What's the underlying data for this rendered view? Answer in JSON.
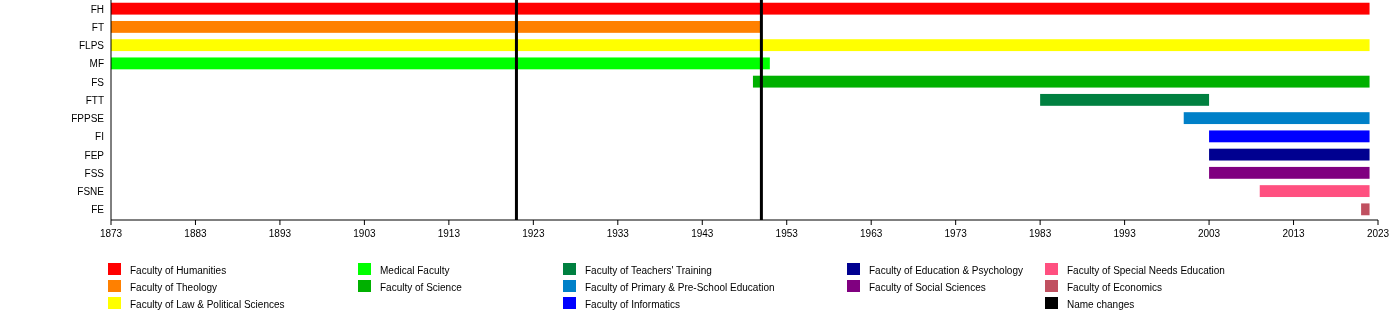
{
  "chart_data": {
    "type": "bar",
    "orientation": "horizontal",
    "categories": [
      "FH",
      "FT",
      "FLPS",
      "MF",
      "FS",
      "FTT",
      "FPPSE",
      "FI",
      "FEP",
      "FSS",
      "FSNE",
      "FE"
    ],
    "series": [
      {
        "name": "Faculty of Humanities",
        "color": "#ff0000",
        "base": [
          1873,
          null,
          null,
          null,
          null,
          null,
          null,
          null,
          null,
          null,
          null,
          null
        ],
        "values": [
          149,
          null,
          null,
          null,
          null,
          null,
          null,
          null,
          null,
          null,
          null,
          null
        ]
      },
      {
        "name": "Faculty of Theology",
        "color": "#ff8000",
        "base": [
          null,
          1873,
          null,
          null,
          null,
          null,
          null,
          null,
          null,
          null,
          null,
          null
        ],
        "values": [
          null,
          77,
          null,
          null,
          null,
          null,
          null,
          null,
          null,
          null,
          null,
          null
        ]
      },
      {
        "name": "Faculty of Law & Political Sciences",
        "color": "#ffff00",
        "base": [
          null,
          null,
          1873,
          null,
          null,
          null,
          null,
          null,
          null,
          null,
          null,
          null
        ],
        "values": [
          null,
          null,
          149,
          null,
          null,
          null,
          null,
          null,
          null,
          null,
          null,
          null
        ]
      },
      {
        "name": "Medical Faculty",
        "color": "#00ff00",
        "base": [
          null,
          null,
          null,
          1873,
          null,
          null,
          null,
          null,
          null,
          null,
          null,
          null
        ],
        "values": [
          null,
          null,
          null,
          78,
          null,
          null,
          null,
          null,
          null,
          null,
          null,
          null
        ]
      },
      {
        "name": "Faculty of Science",
        "color": "#00b000",
        "base": [
          null,
          null,
          null,
          null,
          1949,
          null,
          null,
          null,
          null,
          null,
          null,
          null
        ],
        "values": [
          null,
          null,
          null,
          null,
          73,
          null,
          null,
          null,
          null,
          null,
          null,
          null
        ]
      },
      {
        "name": "Faculty of Teachers' Training",
        "color": "#008040",
        "base": [
          null,
          null,
          null,
          null,
          null,
          1983,
          null,
          null,
          null,
          null,
          null,
          null
        ],
        "values": [
          null,
          null,
          null,
          null,
          null,
          20,
          null,
          null,
          null,
          null,
          null,
          null
        ]
      },
      {
        "name": "Faculty of Primary & Pre-School Education",
        "color": "#0080c8",
        "base": [
          null,
          null,
          null,
          null,
          null,
          null,
          2000,
          null,
          null,
          null,
          null,
          null
        ],
        "values": [
          null,
          null,
          null,
          null,
          null,
          null,
          22,
          null,
          null,
          null,
          null,
          null
        ]
      },
      {
        "name": "Faculty of Informatics",
        "color": "#0000ff",
        "base": [
          null,
          null,
          null,
          null,
          null,
          null,
          null,
          2003,
          null,
          null,
          null,
          null
        ],
        "values": [
          null,
          null,
          null,
          null,
          null,
          null,
          null,
          19,
          null,
          null,
          null,
          null
        ]
      },
      {
        "name": "Faculty of Education & Psychology",
        "color": "#000090",
        "base": [
          null,
          null,
          null,
          null,
          null,
          null,
          null,
          null,
          2003,
          null,
          null,
          null
        ],
        "values": [
          null,
          null,
          null,
          null,
          null,
          null,
          null,
          null,
          19,
          null,
          null,
          null
        ]
      },
      {
        "name": "Faculty of Social Sciences",
        "color": "#800080",
        "base": [
          null,
          null,
          null,
          null,
          null,
          null,
          null,
          null,
          null,
          2003,
          null,
          null
        ],
        "values": [
          null,
          null,
          null,
          null,
          null,
          null,
          null,
          null,
          null,
          19,
          null,
          null
        ]
      },
      {
        "name": "Faculty of Special Needs Education",
        "color": "#ff5080",
        "base": [
          null,
          null,
          null,
          null,
          null,
          null,
          null,
          null,
          null,
          null,
          2009,
          null
        ],
        "values": [
          null,
          null,
          null,
          null,
          null,
          null,
          null,
          null,
          null,
          null,
          13,
          null
        ]
      },
      {
        "name": "Faculty of Economics",
        "color": "#c05060",
        "base": [
          null,
          null,
          null,
          null,
          null,
          null,
          null,
          null,
          null,
          null,
          null,
          2021
        ],
        "values": [
          null,
          null,
          null,
          null,
          null,
          null,
          null,
          null,
          null,
          null,
          null,
          1
        ]
      }
    ],
    "ref_lines": [
      {
        "axis": "x",
        "value": 1921,
        "label": "Name changes",
        "color": "#000000"
      },
      {
        "axis": "x",
        "value": 1950,
        "color": "#000000"
      }
    ],
    "xlim": [
      1873,
      2023
    ],
    "xticks": [
      1873,
      1883,
      1893,
      1903,
      1913,
      1923,
      1933,
      1943,
      1953,
      1963,
      1973,
      1983,
      1993,
      2003,
      2013,
      2023
    ],
    "grid": false,
    "legend": "bottom"
  }
}
